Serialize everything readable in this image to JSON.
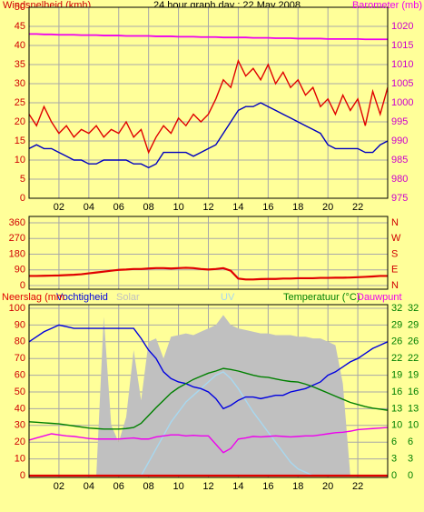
{
  "chart_data": [
    {
      "type": "line",
      "title": "24 hour graph day : 22 May 2008",
      "ylabel": "Windsnelheid (kmh)",
      "ytick_color": "#d00000",
      "y2tick_colors": [
        "#cc00cc"
      ],
      "grid": true,
      "xtick_labels": true,
      "x": [
        0,
        0.5,
        1,
        1.5,
        2,
        2.5,
        3,
        3.5,
        4,
        4.5,
        5,
        5.5,
        6,
        6.5,
        7,
        7.5,
        8,
        8.5,
        9,
        9.5,
        10,
        10.5,
        11,
        11.5,
        12,
        12.5,
        13,
        13.5,
        14,
        14.5,
        15,
        15.5,
        16,
        16.5,
        17,
        17.5,
        18,
        18.5,
        19,
        19.5,
        20,
        20.5,
        21,
        21.5,
        22,
        22.5,
        23,
        23.5,
        24
      ],
      "xlim": [
        0,
        24
      ],
      "xticks": [
        {
          "value": 2,
          "label": "02"
        },
        {
          "value": 4,
          "label": "04"
        },
        {
          "value": 6,
          "label": "06"
        },
        {
          "value": 8,
          "label": "08"
        },
        10,
        12,
        14,
        16,
        18,
        20,
        22
      ],
      "ylim": [
        0,
        50
      ],
      "yticks": [
        0,
        5,
        10,
        15,
        20,
        25,
        30,
        35,
        40,
        45,
        50
      ],
      "y2lim": [
        975,
        1025
      ],
      "y2ticks": [
        975,
        980,
        985,
        990,
        995,
        1000,
        1005,
        1010,
        1015,
        1020
      ],
      "series": [
        {
          "color": "#e00000",
          "values": [
            22,
            19,
            24,
            20,
            17,
            19,
            16,
            18,
            17,
            19,
            16,
            18,
            17,
            20,
            16,
            18,
            12,
            16,
            19,
            17,
            21,
            19,
            22,
            20,
            22,
            26,
            31,
            29,
            36,
            32,
            34,
            31,
            35,
            30,
            33,
            29,
            31,
            27,
            29,
            24,
            26,
            22,
            27,
            23,
            26,
            19,
            28,
            22,
            29
          ]
        },
        {
          "color": "#0000c0",
          "values": [
            13,
            14,
            13,
            13,
            12,
            11,
            10,
            10,
            9,
            9,
            10,
            10,
            10,
            10,
            9,
            9,
            8,
            9,
            12,
            12,
            12,
            12,
            11,
            12,
            13,
            14,
            17,
            20,
            23,
            24,
            24,
            25,
            24,
            23,
            22,
            21,
            20,
            19,
            18,
            17,
            14,
            13,
            13,
            13,
            13,
            12,
            12,
            14,
            15
          ]
        },
        {
          "name": "Barometer (mb)",
          "color": "#ee00ee",
          "axis": "y2",
          "values": [
            1018,
            1018,
            1017.9,
            1017.9,
            1017.8,
            1017.8,
            1017.8,
            1017.7,
            1017.7,
            1017.7,
            1017.6,
            1017.6,
            1017.6,
            1017.5,
            1017.5,
            1017.5,
            1017.5,
            1017.4,
            1017.4,
            1017.4,
            1017.3,
            1017.3,
            1017.3,
            1017.2,
            1017.2,
            1017.2,
            1017.1,
            1017.1,
            1017.1,
            1017.1,
            1017,
            1017,
            1017,
            1016.9,
            1016.9,
            1016.9,
            1016.8,
            1016.8,
            1016.8,
            1016.8,
            1016.7,
            1016.7,
            1016.7,
            1016.7,
            1016.7,
            1016.6,
            1016.6,
            1016.6,
            1016.6
          ]
        }
      ]
    },
    {
      "type": "line",
      "ytick_color": "#d00000",
      "y2tick_colors": [
        "#d00000"
      ],
      "grid": true,
      "xtick_labels": false,
      "x": [
        0,
        0.5,
        1,
        1.5,
        2,
        2.5,
        3,
        3.5,
        4,
        4.5,
        5,
        5.5,
        6,
        6.5,
        7,
        7.5,
        8,
        8.5,
        9,
        9.5,
        10,
        10.5,
        11,
        11.5,
        12,
        12.5,
        13,
        13.5,
        14,
        14.5,
        15,
        15.5,
        16,
        16.5,
        17,
        17.5,
        18,
        18.5,
        19,
        19.5,
        20,
        20.5,
        21,
        21.5,
        22,
        22.5,
        23,
        23.5,
        24
      ],
      "xlim": [
        0,
        24
      ],
      "xticks": [
        2,
        4,
        6,
        8,
        10,
        12,
        14,
        16,
        18,
        20,
        22
      ],
      "ylim": [
        0,
        360
      ],
      "yticks": [
        0,
        90,
        180,
        270,
        360
      ],
      "y2lim": [
        0,
        360
      ],
      "y2ticks": [
        {
          "value": 0,
          "label": "N"
        },
        {
          "value": 90,
          "label": "E"
        },
        {
          "value": 180,
          "label": "S"
        },
        {
          "value": 270,
          "label": "W"
        },
        {
          "value": 360,
          "label": "N"
        }
      ],
      "series": [
        {
          "color": "#e00000",
          "values": [
            55,
            55,
            56,
            57,
            58,
            60,
            62,
            65,
            70,
            75,
            80,
            85,
            90,
            92,
            95,
            95,
            98,
            100,
            100,
            98,
            100,
            102,
            100,
            95,
            92,
            95,
            100,
            85,
            40,
            35,
            35,
            37,
            38,
            38,
            40,
            40,
            42,
            42,
            42,
            44,
            44,
            45,
            45,
            46,
            48,
            50,
            52,
            55,
            55
          ]
        }
      ]
    },
    {
      "type": "line",
      "ytick_color": "#d00000",
      "y2tick_colors": [
        "#008000",
        "#008000"
      ],
      "grid": true,
      "xtick_labels": true,
      "x": [
        0,
        0.5,
        1,
        1.5,
        2,
        2.5,
        3,
        3.5,
        4,
        4.5,
        5,
        5.5,
        6,
        6.5,
        7,
        7.5,
        8,
        8.5,
        9,
        9.5,
        10,
        10.5,
        11,
        11.5,
        12,
        12.5,
        13,
        13.5,
        14,
        14.5,
        15,
        15.5,
        16,
        16.5,
        17,
        17.5,
        18,
        18.5,
        19,
        19.5,
        20,
        20.5,
        21,
        21.5,
        22,
        22.5,
        23,
        23.5,
        24
      ],
      "xlim": [
        0,
        24
      ],
      "xticks": [
        {
          "value": 2,
          "label": "02"
        },
        {
          "value": 4,
          "label": "04"
        },
        {
          "value": 6,
          "label": "06"
        },
        {
          "value": 8,
          "label": "08"
        },
        10,
        12,
        14,
        16,
        18,
        20,
        22
      ],
      "ylim": [
        0,
        100
      ],
      "yticks": [
        0,
        10,
        20,
        30,
        40,
        50,
        60,
        70,
        80,
        90,
        100
      ],
      "y2lim": [
        0,
        32
      ],
      "y2ticks": [
        0,
        {
          "value": 3.2,
          "label": "3"
        },
        {
          "value": 6.4,
          "label": "6"
        },
        {
          "value": 9.6,
          "label": "10"
        },
        {
          "value": 12.8,
          "label": "13"
        },
        16,
        {
          "value": 19.2,
          "label": "19"
        },
        {
          "value": 22.4,
          "label": "22"
        },
        {
          "value": 25.6,
          "label": "26"
        },
        {
          "value": 28.8,
          "label": "29"
        },
        32
      ],
      "series": [
        {
          "name": "Solar",
          "color": "#c0c0c0",
          "area": true,
          "values": [
            0,
            0,
            0,
            0,
            0,
            0,
            0,
            0,
            0,
            0,
            95,
            30,
            20,
            35,
            75,
            45,
            80,
            82,
            70,
            83,
            84,
            85,
            84,
            86,
            88,
            90,
            96,
            90,
            88,
            87,
            86,
            85,
            85,
            84,
            84,
            84,
            83,
            83,
            82,
            82,
            80,
            78,
            55,
            0,
            0,
            0,
            0,
            0,
            0
          ]
        },
        {
          "name": "UV",
          "color": "#a8d8f0",
          "values": [
            0,
            0,
            0,
            0,
            0,
            0,
            0,
            0,
            0,
            0,
            0,
            0,
            0,
            0,
            0,
            0,
            8,
            16,
            24,
            32,
            38,
            44,
            48,
            52,
            56,
            60,
            62,
            58,
            52,
            45,
            38,
            32,
            26,
            20,
            14,
            8,
            4,
            2,
            0,
            0,
            0,
            0,
            0,
            0,
            0,
            0,
            0,
            0,
            0
          ]
        },
        {
          "name": "Vochtigheid",
          "color": "#0000e0",
          "values": [
            80,
            83,
            86,
            88,
            90,
            89,
            88,
            88,
            88,
            88,
            88,
            88,
            88,
            88,
            88,
            82,
            75,
            70,
            62,
            58,
            56,
            55,
            53,
            52,
            50,
            46,
            40,
            42,
            45,
            47,
            47,
            46,
            47,
            48,
            48,
            50,
            51,
            52,
            54,
            56,
            60,
            62,
            65,
            68,
            70,
            73,
            76,
            78,
            80
          ]
        },
        {
          "name": "Temperatuur (°C)",
          "color": "#008000",
          "axis": "y2",
          "values": [
            10.3,
            10.2,
            10.1,
            10.0,
            9.9,
            9.7,
            9.5,
            9.3,
            9.1,
            9.0,
            8.9,
            8.9,
            8.9,
            9.0,
            9.2,
            10.0,
            11.5,
            13.0,
            14.4,
            15.8,
            16.8,
            17.6,
            18.4,
            19.0,
            19.6,
            20.0,
            20.5,
            20.3,
            20.0,
            19.6,
            19.2,
            18.9,
            18.8,
            18.5,
            18.2,
            18.0,
            17.9,
            17.5,
            17.0,
            16.4,
            15.8,
            15.2,
            14.6,
            14.0,
            13.6,
            13.2,
            12.9,
            12.7,
            12.5
          ]
        },
        {
          "name": "Dauwpunt",
          "color": "#ee00ee",
          "axis": "y2",
          "values": [
            6.8,
            7.2,
            7.6,
            8.0,
            7.8,
            7.6,
            7.5,
            7.3,
            7.1,
            7.0,
            7.0,
            7.0,
            7.0,
            7.1,
            7.2,
            7.0,
            7.0,
            7.4,
            7.6,
            7.8,
            7.8,
            7.6,
            7.7,
            7.6,
            7.6,
            6.0,
            4.4,
            5.2,
            7.0,
            7.2,
            7.5,
            7.4,
            7.5,
            7.6,
            7.5,
            7.4,
            7.5,
            7.6,
            7.6,
            7.8,
            8.0,
            8.2,
            8.3,
            8.5,
            8.8,
            8.9,
            9.0,
            9.1,
            9.2
          ]
        },
        {
          "name": "Neerslag (mm",
          "color": "#e00000",
          "values": [
            0,
            0,
            0,
            0,
            0,
            0,
            0,
            0,
            0,
            0,
            0,
            0,
            0,
            0,
            0,
            0,
            0,
            0,
            0,
            0,
            0,
            0,
            0,
            0,
            0,
            0,
            0,
            0,
            0,
            0,
            0,
            0,
            0,
            0,
            0,
            0,
            0,
            0,
            0,
            0,
            0,
            0,
            0,
            0,
            0,
            0,
            0,
            0,
            0
          ]
        }
      ]
    }
  ]
}
